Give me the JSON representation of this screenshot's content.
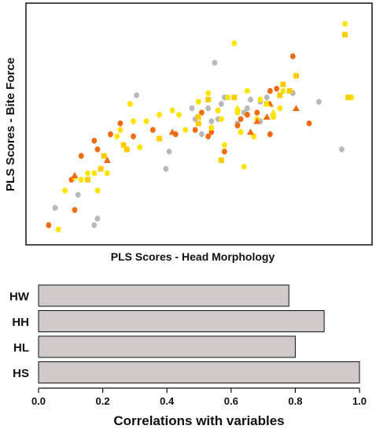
{
  "chart_data": [
    {
      "type": "scatter",
      "xlabel": "PLS Scores - Head Morphology",
      "ylabel": "PLS Scores - Bite Force",
      "xlim": [
        0,
        1
      ],
      "ylim": [
        0,
        1
      ],
      "axis_ticks_shown": false,
      "grid": false,
      "colors": {
        "gray": "#b9b9b9",
        "orange": "#f26b0f",
        "yellow": "#ffe400",
        "amber": "#ffcc00"
      },
      "series": [
        {
          "marker": "circle",
          "color": "gray",
          "points": [
            [
              0.08,
              0.12
            ],
            [
              0.15,
              0.18
            ],
            [
              0.2,
              0.04
            ],
            [
              0.21,
              0.07
            ],
            [
              0.33,
              0.64
            ],
            [
              0.42,
              0.3
            ],
            [
              0.43,
              0.38
            ],
            [
              0.5,
              0.58
            ],
            [
              0.51,
              0.53
            ],
            [
              0.53,
              0.46
            ],
            [
              0.55,
              0.58
            ],
            [
              0.56,
              0.52
            ],
            [
              0.57,
              0.79
            ],
            [
              0.58,
              0.53
            ],
            [
              0.59,
              0.6
            ],
            [
              0.6,
              0.63
            ],
            [
              0.64,
              0.51
            ],
            [
              0.66,
              0.56
            ],
            [
              0.67,
              0.58
            ],
            [
              0.68,
              0.62
            ],
            [
              0.71,
              0.52
            ],
            [
              0.71,
              0.61
            ],
            [
              0.73,
              0.63
            ],
            [
              0.81,
              0.65
            ],
            [
              0.89,
              0.61
            ],
            [
              0.96,
              0.39
            ]
          ]
        },
        {
          "marker": "circle",
          "color": "orange",
          "points": [
            [
              0.06,
              0.04
            ],
            [
              0.13,
              0.25
            ],
            [
              0.14,
              0.11
            ],
            [
              0.16,
              0.36
            ],
            [
              0.2,
              0.43
            ],
            [
              0.21,
              0.39
            ],
            [
              0.25,
              0.46
            ],
            [
              0.28,
              0.51
            ],
            [
              0.32,
              0.45
            ],
            [
              0.38,
              0.48
            ],
            [
              0.45,
              0.46
            ],
            [
              0.51,
              0.48
            ],
            [
              0.53,
              0.56
            ],
            [
              0.55,
              0.45
            ],
            [
              0.56,
              0.47
            ],
            [
              0.58,
              0.57
            ],
            [
              0.6,
              0.38
            ],
            [
              0.64,
              0.5
            ],
            [
              0.65,
              0.53
            ],
            [
              0.67,
              0.55
            ],
            [
              0.7,
              0.56
            ],
            [
              0.74,
              0.46
            ],
            [
              0.74,
              0.66
            ],
            [
              0.76,
              0.67
            ],
            [
              0.81,
              0.82
            ],
            [
              0.86,
              0.51
            ]
          ]
        },
        {
          "marker": "circle",
          "color": "yellow",
          "points": [
            [
              0.09,
              0.02
            ],
            [
              0.11,
              0.2
            ],
            [
              0.14,
              0.26
            ],
            [
              0.16,
              0.25
            ],
            [
              0.18,
              0.28
            ],
            [
              0.2,
              0.28
            ],
            [
              0.21,
              0.2
            ],
            [
              0.24,
              0.28
            ],
            [
              0.27,
              0.45
            ],
            [
              0.28,
              0.48
            ],
            [
              0.31,
              0.6
            ],
            [
              0.32,
              0.52
            ],
            [
              0.34,
              0.4
            ],
            [
              0.36,
              0.52
            ],
            [
              0.4,
              0.55
            ],
            [
              0.44,
              0.57
            ],
            [
              0.46,
              0.55
            ],
            [
              0.48,
              0.48
            ],
            [
              0.52,
              0.61
            ],
            [
              0.55,
              0.65
            ],
            [
              0.56,
              0.49
            ],
            [
              0.58,
              0.57
            ],
            [
              0.59,
              0.53
            ],
            [
              0.6,
              0.41
            ],
            [
              0.61,
              0.63
            ],
            [
              0.63,
              0.88
            ],
            [
              0.64,
              0.56
            ],
            [
              0.65,
              0.47
            ],
            [
              0.66,
              0.31
            ],
            [
              0.67,
              0.66
            ],
            [
              0.69,
              0.45
            ],
            [
              0.7,
              0.53
            ],
            [
              0.71,
              0.62
            ],
            [
              0.75,
              0.54
            ],
            [
              0.77,
              0.58
            ],
            [
              0.78,
              0.66
            ],
            [
              0.97,
              0.97
            ],
            [
              0.99,
              0.63
            ]
          ]
        },
        {
          "marker": "square",
          "color": "amber",
          "points": [
            [
              0.18,
              0.25
            ],
            [
              0.22,
              0.3
            ],
            [
              0.23,
              0.36
            ],
            [
              0.29,
              0.41
            ],
            [
              0.3,
              0.39
            ],
            [
              0.4,
              0.44
            ],
            [
              0.52,
              0.54
            ],
            [
              0.52,
              0.51
            ],
            [
              0.55,
              0.62
            ],
            [
              0.59,
              0.34
            ],
            [
              0.63,
              0.63
            ],
            [
              0.73,
              0.6
            ],
            [
              0.77,
              0.64
            ],
            [
              0.78,
              0.69
            ],
            [
              0.8,
              0.66
            ],
            [
              0.82,
              0.73
            ],
            [
              0.97,
              0.92
            ],
            [
              0.98,
              0.63
            ]
          ]
        },
        {
          "marker": "triangle",
          "color": "orange",
          "points": [
            [
              0.14,
              0.27
            ],
            [
              0.24,
              0.34
            ],
            [
              0.44,
              0.47
            ],
            [
              0.68,
              0.47
            ],
            [
              0.7,
              0.52
            ],
            [
              0.73,
              0.54
            ],
            [
              0.74,
              0.6
            ],
            [
              0.82,
              0.58
            ]
          ]
        },
        {
          "marker": "triangle",
          "color": "yellow",
          "points": [
            [
              0.64,
              0.58
            ],
            [
              0.73,
              0.6
            ],
            [
              0.75,
              0.56
            ]
          ]
        }
      ]
    },
    {
      "type": "bar",
      "orientation": "horizontal",
      "xlabel": "Correlations with variables",
      "xlim": [
        0.0,
        1.0
      ],
      "xticks": [
        "0.0",
        "0.2",
        "0.4",
        "0.6",
        "0.8",
        "1.0"
      ],
      "categories": [
        "HW",
        "HH",
        "HL",
        "HS"
      ],
      "values": [
        0.78,
        0.89,
        0.8,
        1.0
      ],
      "bar_color": "#cfc9c9",
      "bar_edge": "#111111"
    }
  ]
}
